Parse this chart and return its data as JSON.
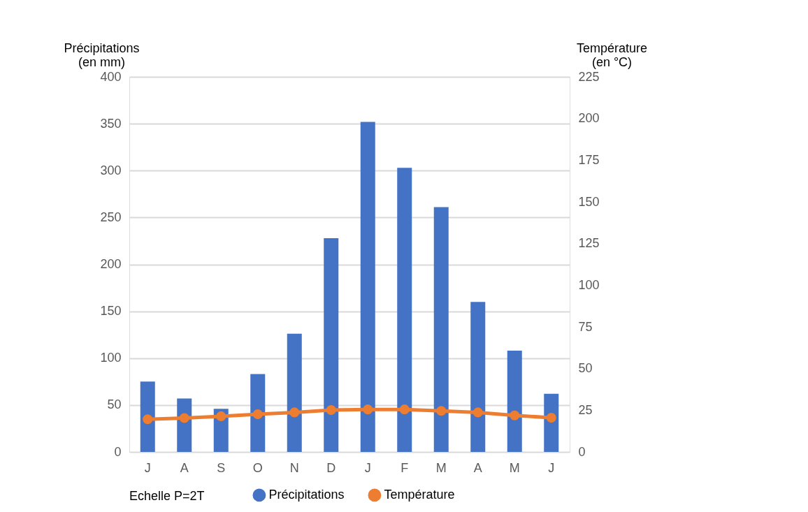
{
  "chart_data": {
    "type": "bar",
    "categories": [
      "J",
      "A",
      "S",
      "O",
      "N",
      "D",
      "J",
      "F",
      "M",
      "A",
      "M",
      "J"
    ],
    "series": [
      {
        "name": "Précipitations",
        "color": "#4472c4",
        "values": [
          75,
          57,
          46,
          83,
          126,
          228,
          352,
          303,
          261,
          160,
          108,
          62
        ]
      },
      {
        "name": "Température",
        "type": "line",
        "axis": "y2",
        "color": "#ed7d31",
        "marker": "circle",
        "values": [
          19.6,
          20.3,
          21.4,
          22.6,
          23.7,
          25.1,
          25.5,
          25.5,
          24.6,
          23.7,
          21.9,
          20.5
        ]
      }
    ],
    "ylabel": "Précipitations (en mm)",
    "y2label": "Température (en °C)",
    "ylim": [
      0,
      400
    ],
    "yticks": [
      0,
      50,
      100,
      150,
      200,
      250,
      300,
      350,
      400
    ],
    "y2lim": [
      0,
      225
    ],
    "y2ticks": [
      0,
      25,
      50,
      75,
      100,
      125,
      150,
      175,
      200,
      225
    ],
    "annotations": [
      "Echelle P=2T"
    ],
    "grid": "y",
    "legend": "bottom"
  }
}
